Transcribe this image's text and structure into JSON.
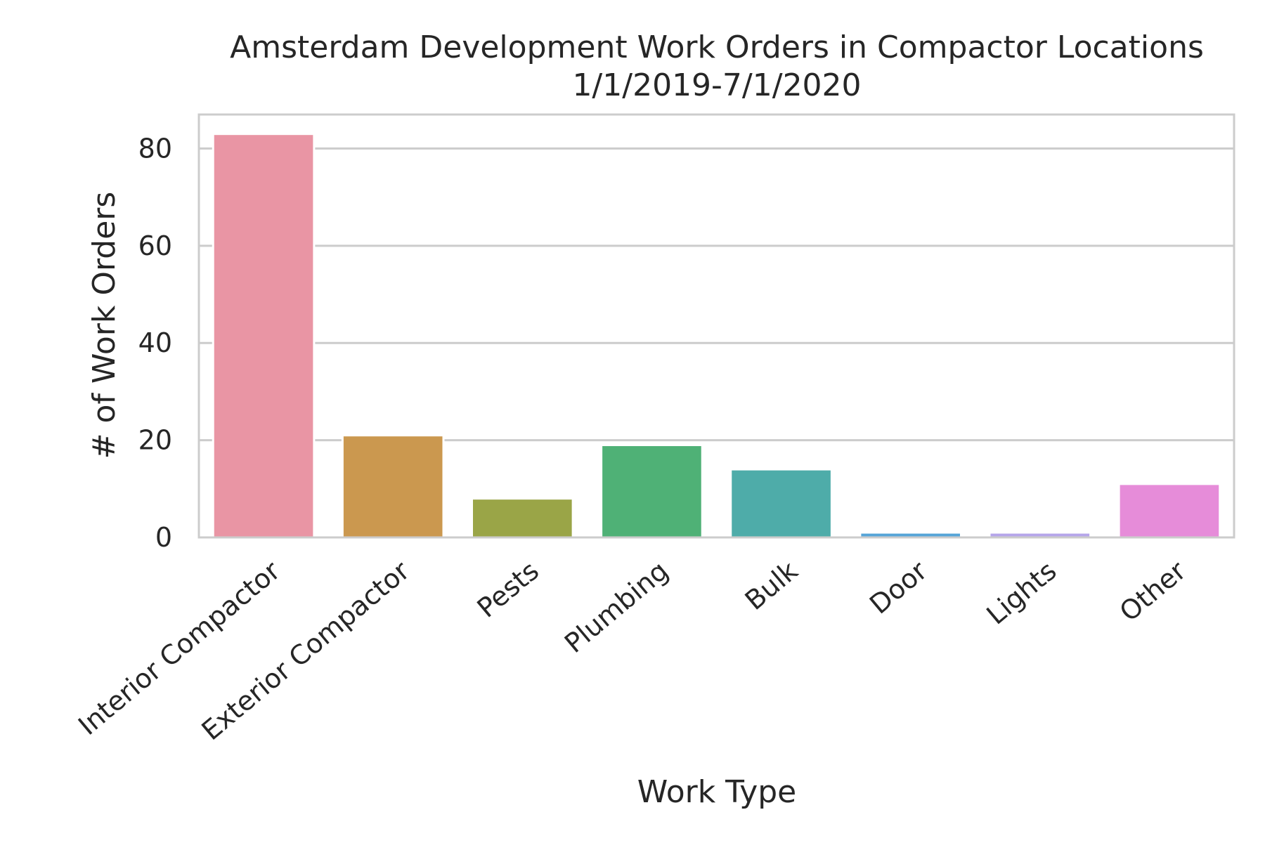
{
  "chart_data": {
    "type": "bar",
    "title": "Amsterdam Development Work Orders in Compactor Locations",
    "subtitle": "1/1/2019-7/1/2020",
    "xlabel": "Work Type",
    "ylabel": "# of Work Orders",
    "categories": [
      "Interior Compactor",
      "Exterior Compactor",
      "Pests",
      "Plumbing",
      "Bulk",
      "Door",
      "Lights",
      "Other"
    ],
    "values": [
      83,
      21,
      8,
      19,
      14,
      1,
      1,
      11
    ],
    "colors": [
      "#e995a4",
      "#cb984f",
      "#9aa547",
      "#4fb176",
      "#4eaca9",
      "#56a5d8",
      "#b6a6ea",
      "#e68cd9"
    ],
    "ylim": [
      0,
      87
    ],
    "yticks": [
      0,
      20,
      40,
      60,
      80
    ],
    "grid": true,
    "grid_color": "#cccccc",
    "spine_color": "#cccccc"
  }
}
